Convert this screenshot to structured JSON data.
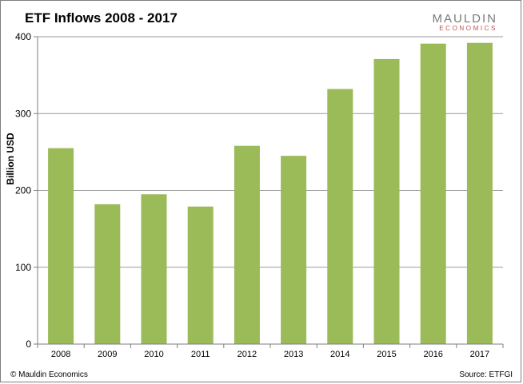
{
  "chart_data": {
    "type": "bar",
    "title": "ETF Inflows 2008 - 2017",
    "ylabel": "Billion USD",
    "xlabel": "",
    "categories": [
      "2008",
      "2009",
      "2010",
      "2011",
      "2012",
      "2013",
      "2014",
      "2015",
      "2016",
      "2017"
    ],
    "values": [
      255,
      182,
      195,
      179,
      258,
      245,
      332,
      371,
      391,
      392
    ],
    "ylim": [
      0,
      400
    ],
    "yticks": [
      "0",
      "100",
      "200",
      "300",
      "400"
    ],
    "grid": true,
    "legend": "none",
    "bar_color": "#9bbb59"
  },
  "branding": {
    "logo_top": "MAULDIN",
    "logo_bottom": "ECONOMICS",
    "copyright": "© Mauldin Economics",
    "source": "Source: ETFGI"
  }
}
